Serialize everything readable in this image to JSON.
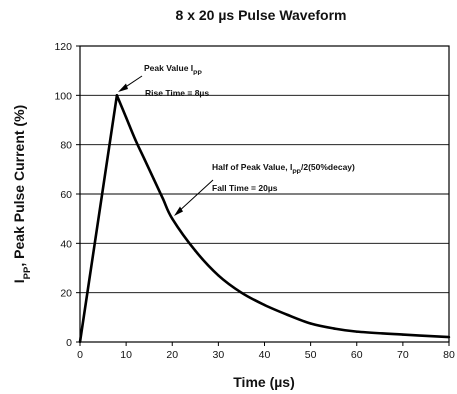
{
  "chart_data": {
    "type": "line",
    "title": "8 x 20 µs Pulse Waveform",
    "xlabel": "Time (µs)",
    "ylabel_main": "I",
    "ylabel_sub": "PP",
    "ylabel_rest": ", Peak Pulse Current (%)",
    "xlim": [
      0,
      80
    ],
    "ylim": [
      0,
      120
    ],
    "x_ticks": [
      "0",
      "10",
      "20",
      "30",
      "40",
      "50",
      "60",
      "70",
      "80"
    ],
    "y_ticks": [
      "0",
      "20",
      "40",
      "60",
      "80",
      "100",
      "120"
    ],
    "grid": "horizontal",
    "series": [
      {
        "x": [
          0,
          8,
          10,
          12,
          14,
          16,
          18,
          20,
          25,
          30,
          35,
          40,
          45,
          50,
          55,
          60,
          70,
          80
        ],
        "y": [
          0,
          100,
          91,
          82,
          74,
          66,
          58,
          50,
          37,
          27,
          20,
          15,
          11,
          7.5,
          5.5,
          4.2,
          3,
          2
        ]
      }
    ],
    "annotations": {
      "peak_value_main": "Peak Value I",
      "peak_value_sub": "PP",
      "rise_time": "Rise Time = 8µs",
      "half_peak_main": "Half of Peak Value, I",
      "half_peak_sub": "PP",
      "half_peak_rest": "/2(50%decay)",
      "fall_time": "Fall Time = 20µs"
    }
  }
}
